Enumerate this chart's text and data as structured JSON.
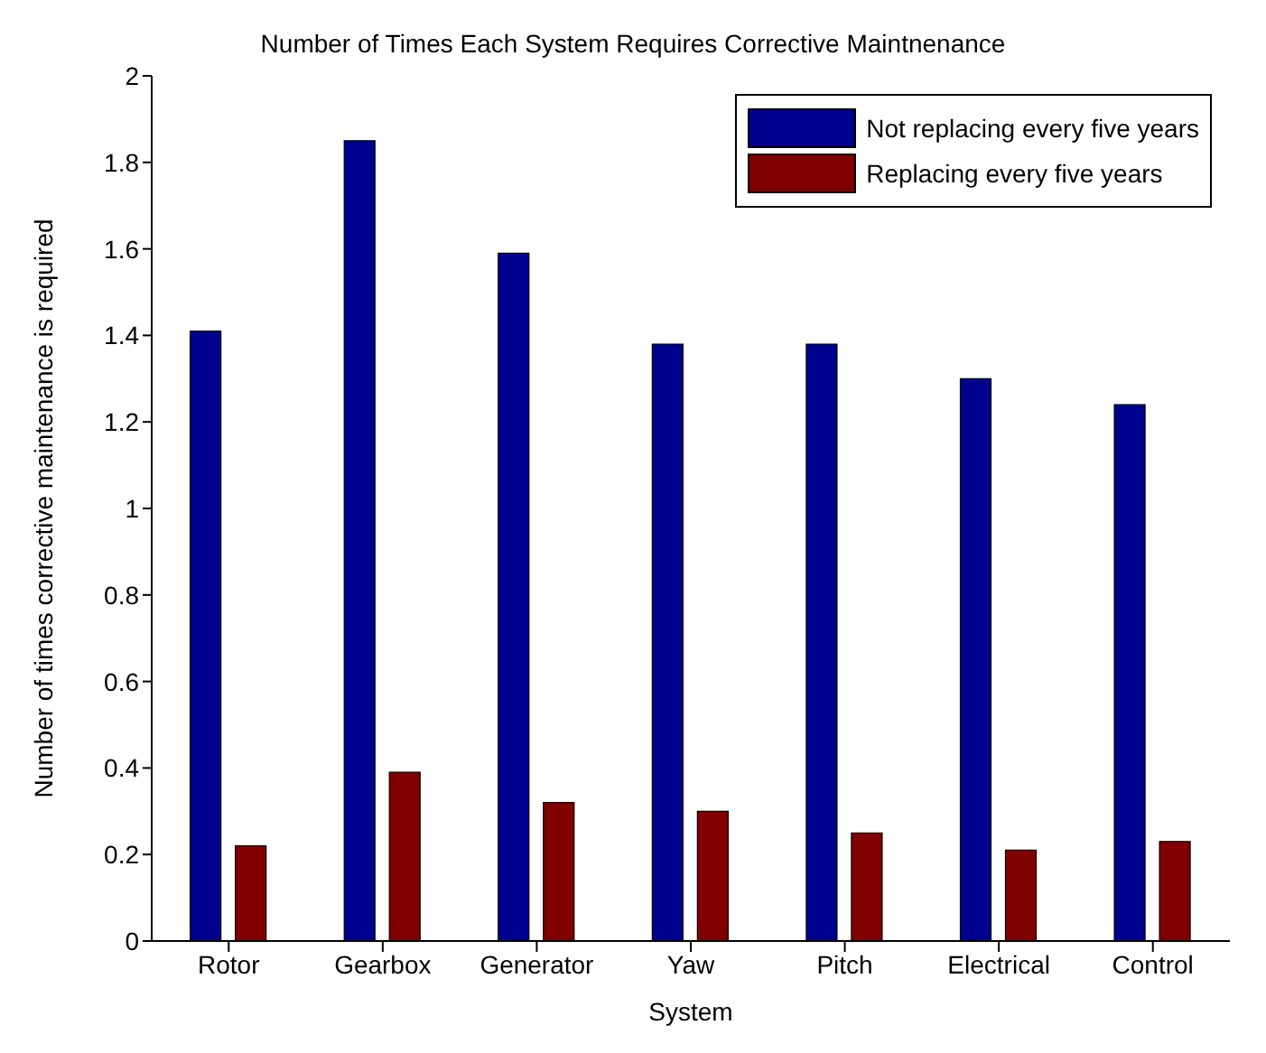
{
  "chart_data": {
    "type": "bar",
    "title": "Number of Times Each System Requires Corrective Maintnenance",
    "xlabel": "System",
    "ylabel": "Number of times corrective maintenance is required",
    "categories": [
      "Rotor",
      "Gearbox",
      "Generator",
      "Yaw",
      "Pitch",
      "Electrical",
      "Control"
    ],
    "series": [
      {
        "name": "Not replacing every five years",
        "color": "#00008f",
        "values": [
          1.41,
          1.85,
          1.59,
          1.38,
          1.38,
          1.3,
          1.24
        ]
      },
      {
        "name": "Replacing every five years",
        "color": "#800000",
        "values": [
          0.22,
          0.39,
          0.32,
          0.3,
          0.25,
          0.21,
          0.23
        ]
      }
    ],
    "ylim": [
      0,
      2
    ],
    "yticks": [
      0,
      0.2,
      0.4,
      0.6,
      0.8,
      1,
      1.2,
      1.4,
      1.6,
      1.8,
      2
    ],
    "grid": false,
    "legend": "top right"
  }
}
